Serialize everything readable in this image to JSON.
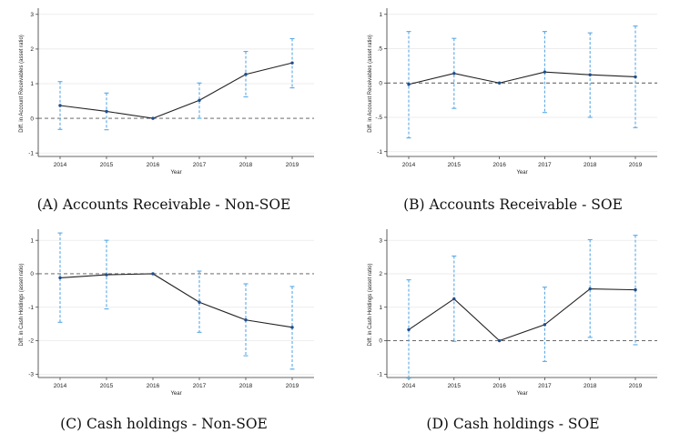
{
  "colors": {
    "line": "#222222",
    "point": "#1f4e8c",
    "ci": "#5aa9e6",
    "grid": "#e6e6e6",
    "zero": "#555555"
  },
  "captions": [
    "(A) Accounts Receivable - Non-SOE",
    "(B) Accounts Receivable - SOE",
    "(C) Cash holdings - Non-SOE",
    "(D) Cash holdings - SOE"
  ],
  "chart_data": [
    {
      "type": "line",
      "xlabel": "Year",
      "ylabel": "Diff. in Account Receivables (asset ratio)",
      "x": [
        "2014",
        "2015",
        "2016",
        "2017",
        "2018",
        "2019"
      ],
      "series": [
        {
          "values": [
            0.37,
            0.2,
            0.0,
            0.52,
            1.27,
            1.6
          ]
        }
      ],
      "ci_low": [
        -0.32,
        -0.33,
        0.0,
        0.0,
        0.62,
        0.88
      ],
      "ci_high": [
        1.06,
        0.73,
        0.0,
        1.02,
        1.93,
        2.3
      ],
      "ylim": [
        -1.1,
        3.1
      ],
      "yticks": [
        -1,
        0,
        1,
        2,
        3
      ],
      "yticklabels": [
        "-1",
        "0",
        "1",
        "2",
        "3"
      ],
      "grid": true,
      "reference_line": 0
    },
    {
      "type": "line",
      "xlabel": "Year",
      "ylabel": "Diff. in Account Receivables (asset ratio)",
      "x": [
        "2014",
        "2015",
        "2016",
        "2017",
        "2018",
        "2019"
      ],
      "series": [
        {
          "values": [
            -0.02,
            0.14,
            0.0,
            0.16,
            0.12,
            0.09
          ]
        }
      ],
      "ci_low": [
        -0.8,
        -0.37,
        0.0,
        -0.43,
        -0.5,
        -0.65
      ],
      "ci_high": [
        0.75,
        0.65,
        0.0,
        0.75,
        0.73,
        0.83
      ],
      "ylim": [
        -1.07,
        1.05
      ],
      "yticks": [
        -1,
        -0.5,
        0,
        0.5,
        1
      ],
      "yticklabels": [
        "-1",
        "-.5",
        "0",
        ".5",
        "1"
      ],
      "grid": true,
      "reference_line": 0
    },
    {
      "type": "line",
      "xlabel": "Year",
      "ylabel": "Diff. in Cash Holdings (asset ratio)",
      "x": [
        "2014",
        "2015",
        "2016",
        "2017",
        "2018",
        "2019"
      ],
      "series": [
        {
          "values": [
            -0.12,
            -0.03,
            0.0,
            -0.85,
            -1.38,
            -1.6
          ]
        }
      ],
      "ci_low": [
        -1.45,
        -1.05,
        0.0,
        -1.75,
        -2.45,
        -2.85
      ],
      "ci_high": [
        1.22,
        1.0,
        0.0,
        0.08,
        -0.3,
        -0.38
      ],
      "ylim": [
        -3.1,
        1.25
      ],
      "yticks": [
        -3,
        -2,
        -1,
        0,
        1
      ],
      "yticklabels": [
        "-3",
        "-2",
        "-1",
        "0",
        "1"
      ],
      "grid": true,
      "reference_line": 0
    },
    {
      "type": "line",
      "xlabel": "Year",
      "ylabel": "Diff. in Cash Holdings (asset ratio)",
      "x": [
        "2014",
        "2015",
        "2016",
        "2017",
        "2018",
        "2019"
      ],
      "series": [
        {
          "values": [
            0.33,
            1.25,
            0.0,
            0.48,
            1.55,
            1.52
          ]
        }
      ],
      "ci_low": [
        -1.12,
        -0.02,
        0.0,
        -0.62,
        0.1,
        -0.12
      ],
      "ci_high": [
        1.82,
        2.53,
        0.0,
        1.6,
        3.02,
        3.15
      ],
      "ylim": [
        -1.1,
        3.25
      ],
      "yticks": [
        -1,
        0,
        1,
        2,
        3
      ],
      "yticklabels": [
        "-1",
        "0",
        "1",
        "2",
        "3"
      ],
      "grid": true,
      "reference_line": 0
    }
  ]
}
